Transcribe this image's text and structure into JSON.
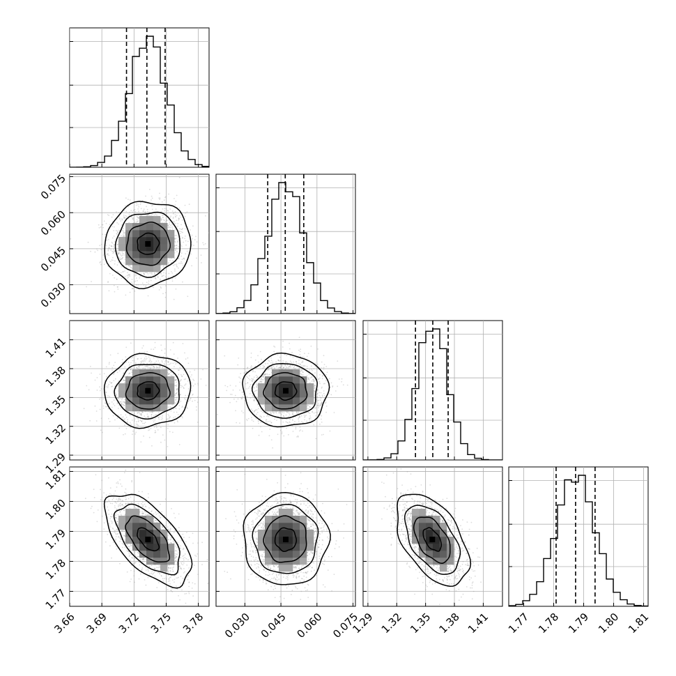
{
  "chart_data": {
    "type": "corner",
    "title": "",
    "parameters": [
      {
        "name": "",
        "range": [
          3.66,
          3.79
        ],
        "ticks": [
          3.66,
          3.69,
          3.72,
          3.75,
          3.78
        ],
        "tick_labels": [
          "3.66",
          "3.69",
          "3.72",
          "3.75",
          "3.78"
        ],
        "quantiles": [
          3.713,
          3.732,
          3.749
        ],
        "mean": 3.733,
        "sd": 0.017
      },
      {
        "name": "",
        "range": [
          0.018,
          0.076
        ],
        "ticks": [
          0.03,
          0.045,
          0.06,
          0.075
        ],
        "tick_labels": [
          "0.030",
          "0.045",
          "0.060",
          "0.075"
        ],
        "quantiles": [
          0.0395,
          0.0468,
          0.0545
        ],
        "mean": 0.047,
        "sd": 0.0075
      },
      {
        "name": "",
        "range": [
          1.285,
          1.43
        ],
        "ticks": [
          1.29,
          1.32,
          1.35,
          1.38,
          1.41
        ],
        "tick_labels": [
          "1.29",
          "1.32",
          "1.35",
          "1.38",
          "1.41"
        ],
        "quantiles": [
          1.3395,
          1.3575,
          1.3735
        ],
        "mean": 1.357,
        "sd": 0.016
      },
      {
        "name": "",
        "range": [
          1.765,
          1.8115
        ],
        "ticks": [
          1.77,
          1.78,
          1.79,
          1.8,
          1.81
        ],
        "tick_labels": [
          "1.77",
          "1.78",
          "1.79",
          "1.80",
          "1.81"
        ],
        "quantiles": [
          1.7808,
          1.7873,
          1.7938
        ],
        "mean": 1.7873,
        "sd": 0.0065
      }
    ],
    "correlations": [
      {
        "i": 1,
        "j": 0,
        "rho": 0.05
      },
      {
        "i": 2,
        "j": 0,
        "rho": 0.05
      },
      {
        "i": 2,
        "j": 1,
        "rho": 0.0
      },
      {
        "i": 3,
        "j": 0,
        "rho": -0.6
      },
      {
        "i": 3,
        "j": 1,
        "rho": 0.0
      },
      {
        "i": 3,
        "j": 2,
        "rho": -0.5
      }
    ],
    "histogram_bins": 20,
    "contour_levels_sigma": [
      0.5,
      1.0,
      1.5,
      2.0
    ],
    "grid": true,
    "legend": "none"
  }
}
